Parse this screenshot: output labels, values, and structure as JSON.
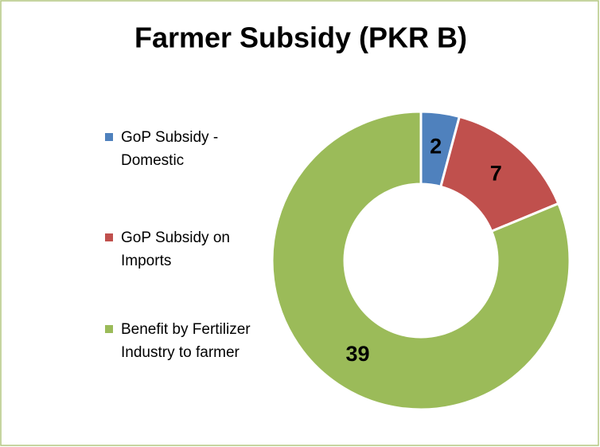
{
  "chart_data": {
    "type": "doughnut",
    "title": "Farmer Subsidy (PKR B)",
    "categories": [
      "GoP Subsidy - Domestic",
      "GoP Subsidy on Imports",
      "Benefit by Fertilizer Industry to farmer"
    ],
    "values": [
      2,
      7,
      39
    ],
    "colors": [
      "#4f81bd",
      "#c0504d",
      "#9bbb59"
    ],
    "legend": "left"
  }
}
